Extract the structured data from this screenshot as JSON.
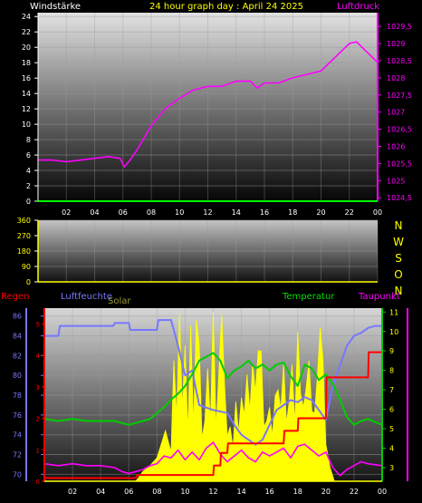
{
  "colors": {
    "background": "#000000",
    "wind": "#ffffff",
    "pressure": "#ff00ff",
    "date": "#ffff00",
    "direction": "#ffff00",
    "rain": "#ff0000",
    "humidity": "#7777ff",
    "solar": "#ffff00",
    "temperature": "#00cc00",
    "dewpoint": "#ff00ff",
    "time_axis": "#ffffff",
    "axis_line": "#00ff00"
  },
  "chart_data": [
    {
      "type": "line",
      "title": "24 hour graph day : April 24 2025",
      "left_label": "Windstärke",
      "right_label": "Luftdruck",
      "x_ticks": [
        "02",
        "04",
        "06",
        "08",
        "10",
        "12",
        "14",
        "16",
        "18",
        "20",
        "22",
        "00"
      ],
      "y_left_ticks": [
        "24",
        "22",
        "20",
        "18",
        "16",
        "14",
        "12",
        "10",
        "8",
        "6",
        "4",
        "2",
        "0"
      ],
      "y_left_range": [
        0,
        24.5
      ],
      "y_right_ticks": [
        "1029,5",
        "1029",
        "1028,5",
        "1028",
        "1027,5",
        "1027",
        "1026,5",
        "1026",
        "1025,5",
        "1025",
        "1024,5"
      ],
      "y_right_range": [
        1024.4,
        1029.9
      ],
      "series": [
        {
          "name": "Luftdruck",
          "axis": "right",
          "x": [
            0,
            1,
            2,
            3,
            4,
            5,
            5.8,
            6.1,
            6.5,
            7,
            8,
            9,
            10,
            11,
            12,
            13,
            14,
            15,
            15.5,
            16,
            17,
            18,
            19,
            20,
            21,
            22,
            22.5,
            23,
            23.5,
            24
          ],
          "values": [
            1025.6,
            1025.6,
            1025.55,
            1025.6,
            1025.65,
            1025.7,
            1025.65,
            1025.4,
            1025.6,
            1025.9,
            1026.6,
            1027.1,
            1027.4,
            1027.65,
            1027.75,
            1027.75,
            1027.9,
            1027.9,
            1027.7,
            1027.85,
            1027.85,
            1028.0,
            1028.1,
            1028.2,
            1028.6,
            1029.0,
            1029.05,
            1028.85,
            1028.65,
            1028.45
          ]
        },
        {
          "name": "Windstärke",
          "axis": "left",
          "x": [
            0,
            24
          ],
          "values": [
            0,
            0
          ]
        }
      ]
    },
    {
      "type": "line",
      "y_ticks": [
        "360",
        "270",
        "180",
        "90",
        "0"
      ],
      "y_range": [
        0,
        360
      ],
      "right_labels": [
        "N",
        "W",
        "S",
        "O",
        "N"
      ],
      "series": [
        {
          "name": "Windrichtung",
          "x": [
            0,
            24
          ],
          "values": [
            0,
            0
          ]
        }
      ]
    },
    {
      "type": "line",
      "labels": {
        "rain": "Regen",
        "humidity": "Luftfeuchte",
        "solar": "Solar",
        "temperature": "Temperatur",
        "dewpoint": "Taupunkt"
      },
      "x_ticks": [
        "02",
        "04",
        "06",
        "08",
        "10",
        "12",
        "14",
        "16",
        "18",
        "20",
        "22",
        "00"
      ],
      "y_left_ticks": [
        "86",
        "84",
        "82",
        "80",
        "78",
        "76",
        "74",
        "72",
        "70"
      ],
      "y_left_range": [
        69.3,
        86.8
      ],
      "y_right_ticks": [
        "11",
        "10",
        "9",
        "8",
        "7",
        "6",
        "5",
        "4",
        "3"
      ],
      "y_right_range": [
        2.3,
        11.2
      ],
      "y_rain_ticks": [
        "5",
        "4",
        "3",
        "2",
        "1",
        "0"
      ],
      "y_rain_range": [
        0,
        5.5
      ],
      "series": [
        {
          "name": "Luftfeuchte",
          "axis": "left",
          "x": [
            0,
            1.0,
            1.1,
            4.9,
            5.0,
            6.0,
            6.1,
            8.0,
            8.1,
            9.0,
            9.5,
            10.0,
            10.5,
            11,
            12,
            13,
            13.5,
            14,
            14.5,
            15,
            15.5,
            16,
            16.5,
            17,
            17.5,
            18,
            18.5,
            19,
            19.5,
            20,
            20.5,
            21,
            21.5,
            22,
            22.5,
            23,
            23.5,
            24
          ],
          "values": [
            84.0,
            84.0,
            85.0,
            85.0,
            85.3,
            85.3,
            84.6,
            84.6,
            85.6,
            85.6,
            83.0,
            80.0,
            80.5,
            77.0,
            76.5,
            76.2,
            75.0,
            74.0,
            73.5,
            73.0,
            73.5,
            75.0,
            76.5,
            77.0,
            77.5,
            77.3,
            77.8,
            77.5,
            76.5,
            75.5,
            79.0,
            81.0,
            83.0,
            84.0,
            84.3,
            84.8,
            85.0,
            85.0
          ]
        },
        {
          "name": "Temperatur",
          "axis": "right",
          "x": [
            0,
            1,
            2,
            3,
            4,
            5,
            5.5,
            6,
            6.5,
            7,
            7.5,
            8,
            8.5,
            9,
            9.5,
            10,
            10.5,
            11,
            11.5,
            12,
            12.5,
            13,
            13.5,
            14,
            14.5,
            15,
            15.5,
            16,
            16.5,
            17,
            17.5,
            18,
            18.5,
            19,
            19.5,
            20,
            20.5,
            21,
            21.5,
            22,
            22.5,
            23,
            24
          ],
          "values": [
            5.5,
            5.4,
            5.5,
            5.4,
            5.4,
            5.4,
            5.3,
            5.2,
            5.3,
            5.4,
            5.5,
            5.8,
            6.1,
            6.5,
            6.8,
            7.2,
            7.8,
            8.5,
            8.7,
            8.9,
            8.5,
            7.6,
            8.0,
            8.2,
            8.5,
            8.1,
            8.3,
            8.0,
            8.3,
            8.4,
            7.7,
            7.2,
            8.3,
            8.1,
            7.5,
            7.8,
            7.3,
            6.5,
            5.6,
            5.2,
            5.4,
            5.5,
            5.2
          ]
        },
        {
          "name": "Taupunkt",
          "axis": "right",
          "x": [
            0,
            1,
            2,
            3,
            4,
            5,
            5.5,
            6,
            6.5,
            7,
            7.5,
            8,
            8.5,
            9,
            9.5,
            10,
            10.5,
            11,
            11.5,
            12,
            12.5,
            13,
            13.5,
            14,
            14.5,
            15,
            15.5,
            16,
            16.5,
            17,
            17.5,
            18,
            18.5,
            19,
            19.5,
            20,
            20.5,
            21,
            21.5,
            22,
            22.5,
            23,
            24
          ],
          "values": [
            3.2,
            3.1,
            3.2,
            3.1,
            3.1,
            3.0,
            2.8,
            2.7,
            2.8,
            2.9,
            3.1,
            3.2,
            3.6,
            3.5,
            3.9,
            3.4,
            3.8,
            3.4,
            4.0,
            4.3,
            3.7,
            3.3,
            3.6,
            3.9,
            3.5,
            3.3,
            3.8,
            3.6,
            3.8,
            4.0,
            3.5,
            4.1,
            4.2,
            3.9,
            3.6,
            3.8,
            3.0,
            2.6,
            2.9,
            3.1,
            3.3,
            3.2,
            3.1
          ]
        },
        {
          "name": "Regen",
          "axis": "rain",
          "x": [
            0,
            6.5,
            6.6,
            12.0,
            12.05,
            12.5,
            12.55,
            13.0,
            13.05,
            17.0,
            17.05,
            18.0,
            18.05,
            20.0,
            20.05,
            23.0,
            23.05,
            24
          ],
          "values": [
            0.1,
            0.1,
            0.2,
            0.2,
            0.5,
            0.5,
            0.9,
            0.9,
            1.2,
            1.2,
            1.6,
            1.6,
            2.0,
            2.0,
            3.3,
            3.3,
            4.1,
            4.1
          ]
        },
        {
          "name": "Solar",
          "axis": "right",
          "x": [
            6.5,
            7.0,
            7.5,
            8.0,
            8.3,
            8.6,
            9.0,
            9.2,
            9.4,
            9.6,
            9.8,
            10.0,
            10.2,
            10.4,
            10.6,
            10.8,
            11.0,
            11.2,
            11.4,
            11.6,
            11.8,
            12.0,
            12.2,
            12.4,
            12.6,
            12.8,
            13.0,
            13.2,
            13.4,
            13.6,
            13.8,
            14.0,
            14.2,
            14.4,
            14.6,
            14.8,
            15.0,
            15.2,
            15.4,
            15.6,
            15.8,
            16.0,
            16.2,
            16.4,
            16.6,
            16.8,
            17.0,
            17.2,
            17.4,
            17.6,
            17.8,
            18.0,
            18.2,
            18.4,
            18.6,
            18.8,
            19.0,
            19.2,
            19.4,
            19.6,
            19.8,
            20.0,
            20.3,
            20.6
          ],
          "values": [
            2.3,
            2.8,
            3.1,
            3.5,
            4.2,
            4.9,
            3.8,
            8.5,
            5.6,
            10.9,
            6.0,
            9.3,
            4.8,
            10.3,
            5.1,
            10.6,
            9.3,
            4.5,
            5.4,
            8.1,
            5.3,
            11.0,
            5.0,
            7.9,
            10.9,
            7.3,
            4.6,
            5.1,
            4.0,
            6.4,
            4.8,
            6.6,
            5.7,
            7.8,
            5.9,
            8.3,
            6.9,
            9.0,
            9.0,
            5.1,
            5.4,
            6.1,
            4.6,
            6.7,
            7.0,
            6.0,
            8.3,
            5.3,
            6.4,
            8.3,
            5.2,
            10.0,
            6.8,
            6.1,
            7.1,
            8.5,
            5.9,
            5.8,
            7.7,
            10.2,
            8.5,
            4.2,
            3.0,
            2.3
          ]
        }
      ]
    }
  ]
}
